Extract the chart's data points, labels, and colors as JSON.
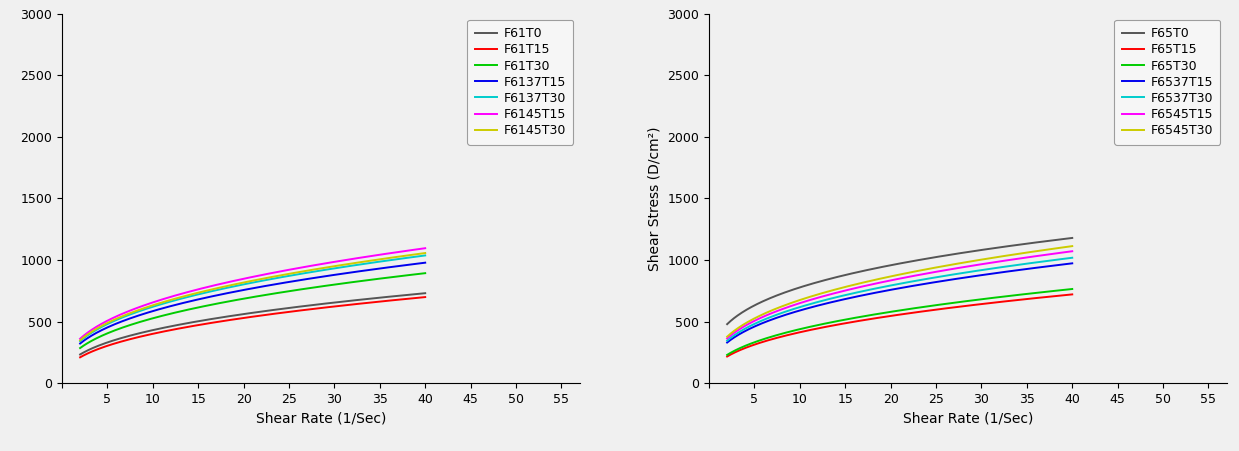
{
  "left_plot": {
    "xlabel": "Shear Rate (1/Sec)",
    "ylabel": "",
    "xlim": [
      0,
      57
    ],
    "ylim": [
      0,
      3000
    ],
    "yticks": [
      0,
      500,
      1000,
      1500,
      2000,
      2500,
      3000
    ],
    "xticks": [
      0,
      5,
      10,
      15,
      20,
      25,
      30,
      35,
      40,
      45,
      50,
      55
    ],
    "series": [
      {
        "label": "F61T0",
        "color": "#555555",
        "K": 180,
        "n": 0.38
      },
      {
        "label": "F61T15",
        "color": "#ff0000",
        "K": 160,
        "n": 0.4
      },
      {
        "label": "F61T30",
        "color": "#00cc00",
        "K": 220,
        "n": 0.38
      },
      {
        "label": "F6137T15",
        "color": "#0000ee",
        "K": 250,
        "n": 0.37
      },
      {
        "label": "F6137T30",
        "color": "#00cccc",
        "K": 265,
        "n": 0.37
      },
      {
        "label": "F6145T15",
        "color": "#ff00ff",
        "K": 280,
        "n": 0.37
      },
      {
        "label": "F6145T30",
        "color": "#cccc00",
        "K": 270,
        "n": 0.37
      }
    ]
  },
  "right_plot": {
    "xlabel": "Shear Rate (1/Sec)",
    "ylabel": "Shear Stress (D/cm²)",
    "xlim": [
      0,
      57
    ],
    "ylim": [
      0,
      3000
    ],
    "yticks": [
      0,
      500,
      1000,
      1500,
      2000,
      2500,
      3000
    ],
    "xticks": [
      0,
      5,
      10,
      15,
      20,
      25,
      30,
      35,
      40,
      45,
      50,
      55
    ],
    "series": [
      {
        "label": "F65T0",
        "color": "#555555",
        "K": 390,
        "n": 0.3
      },
      {
        "label": "F65T15",
        "color": "#ff0000",
        "K": 165,
        "n": 0.4
      },
      {
        "label": "F65T30",
        "color": "#00cc00",
        "K": 175,
        "n": 0.4
      },
      {
        "label": "F6537T15",
        "color": "#0000ee",
        "K": 258,
        "n": 0.36
      },
      {
        "label": "F6537T30",
        "color": "#00cccc",
        "K": 270,
        "n": 0.36
      },
      {
        "label": "F6545T15",
        "color": "#ff00ff",
        "K": 284,
        "n": 0.36
      },
      {
        "label": "F6545T30",
        "color": "#cccc00",
        "K": 295,
        "n": 0.36
      }
    ]
  },
  "background_color": "#f0f0f0",
  "line_width": 1.4,
  "legend_fontsize": 9,
  "tick_fontsize": 9,
  "label_fontsize": 10
}
